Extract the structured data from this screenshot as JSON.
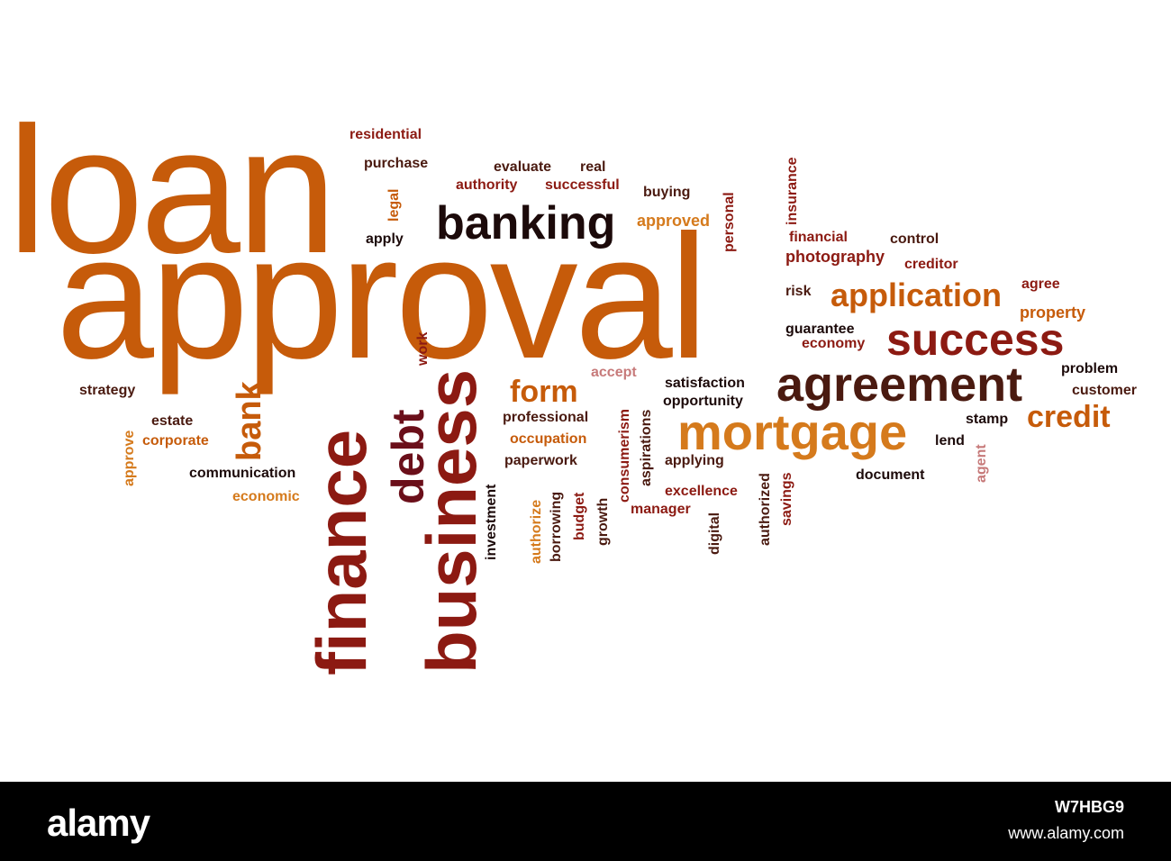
{
  "colors": {
    "orange": "#c65b0a",
    "light_orange": "#d57a1c",
    "dark_red": "#8c1a12",
    "maroon": "#6b0f1a",
    "near_black": "#1c0a0a",
    "brown": "#4a1a10",
    "pink": "#c77a7a"
  },
  "words": [
    {
      "id": "loan",
      "text": "loan"
    },
    {
      "id": "approval",
      "text": "approval"
    },
    {
      "id": "banking",
      "text": "banking"
    },
    {
      "id": "finance",
      "text": "finance"
    },
    {
      "id": "business",
      "text": "business"
    },
    {
      "id": "debt",
      "text": "debt"
    },
    {
      "id": "agreement",
      "text": "agreement"
    },
    {
      "id": "mortgage",
      "text": "mortgage"
    },
    {
      "id": "success",
      "text": "success"
    },
    {
      "id": "application",
      "text": "application"
    },
    {
      "id": "credit",
      "text": "credit"
    },
    {
      "id": "form",
      "text": "form"
    },
    {
      "id": "bank",
      "text": "bank"
    },
    {
      "id": "residential",
      "text": "residential"
    },
    {
      "id": "purchase",
      "text": "purchase"
    },
    {
      "id": "evaluate",
      "text": "evaluate"
    },
    {
      "id": "real",
      "text": "real"
    },
    {
      "id": "authority",
      "text": "authority"
    },
    {
      "id": "successful",
      "text": "successful"
    },
    {
      "id": "buying",
      "text": "buying"
    },
    {
      "id": "legal",
      "text": "legal"
    },
    {
      "id": "apply",
      "text": "apply"
    },
    {
      "id": "approved",
      "text": "approved"
    },
    {
      "id": "personal",
      "text": "personal"
    },
    {
      "id": "insurance",
      "text": "insurance"
    },
    {
      "id": "financial",
      "text": "financial"
    },
    {
      "id": "control",
      "text": "control"
    },
    {
      "id": "photography",
      "text": "photography"
    },
    {
      "id": "creditor",
      "text": "creditor"
    },
    {
      "id": "risk",
      "text": "risk"
    },
    {
      "id": "agree",
      "text": "agree"
    },
    {
      "id": "property",
      "text": "property"
    },
    {
      "id": "guarantee",
      "text": "guarantee"
    },
    {
      "id": "economy",
      "text": "economy"
    },
    {
      "id": "work",
      "text": "work"
    },
    {
      "id": "accept",
      "text": "accept"
    },
    {
      "id": "satisfaction",
      "text": "satisfaction"
    },
    {
      "id": "opportunity",
      "text": "opportunity"
    },
    {
      "id": "problem",
      "text": "problem"
    },
    {
      "id": "customer",
      "text": "customer"
    },
    {
      "id": "strategy",
      "text": "strategy"
    },
    {
      "id": "estate",
      "text": "estate"
    },
    {
      "id": "corporate",
      "text": "corporate"
    },
    {
      "id": "approve",
      "text": "approve"
    },
    {
      "id": "communication",
      "text": "communication"
    },
    {
      "id": "economic",
      "text": "economic"
    },
    {
      "id": "professional",
      "text": "professional"
    },
    {
      "id": "occupation",
      "text": "occupation"
    },
    {
      "id": "paperwork",
      "text": "paperwork"
    },
    {
      "id": "consumerism",
      "text": "consumerism"
    },
    {
      "id": "aspirations",
      "text": "aspirations"
    },
    {
      "id": "applying",
      "text": "applying"
    },
    {
      "id": "excellence",
      "text": "excellence"
    },
    {
      "id": "manager",
      "text": "manager"
    },
    {
      "id": "stamp",
      "text": "stamp"
    },
    {
      "id": "lend",
      "text": "lend"
    },
    {
      "id": "agent",
      "text": "agent"
    },
    {
      "id": "document",
      "text": "document"
    },
    {
      "id": "investment",
      "text": "investment"
    },
    {
      "id": "authorize",
      "text": "authorize"
    },
    {
      "id": "borrowing",
      "text": "borrowing"
    },
    {
      "id": "budget",
      "text": "budget"
    },
    {
      "id": "growth",
      "text": "growth"
    },
    {
      "id": "digital",
      "text": "digital"
    },
    {
      "id": "authorized",
      "text": "authorized"
    },
    {
      "id": "savings",
      "text": "savings"
    }
  ],
  "footer": {
    "brand": "alamy",
    "image_id": "W7HBG9",
    "site": "www.alamy.com"
  }
}
